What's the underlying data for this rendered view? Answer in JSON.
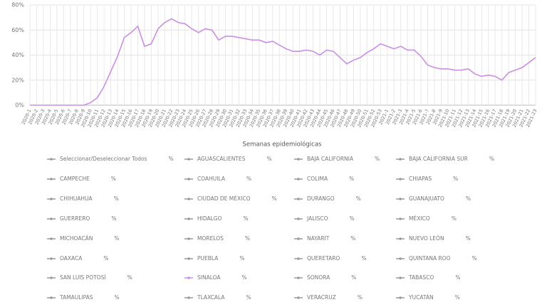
{
  "chart_data": {
    "type": "line",
    "xlabel": "Semanas epidemiológicas",
    "categories": [
      "2020-1",
      "2020-2",
      "2020-3",
      "2020-4",
      "2020-5",
      "2020-6",
      "2020-7",
      "2020-8",
      "2020-9",
      "2020-10",
      "2020-11",
      "2020-12",
      "2020-13",
      "2020-14",
      "2020-15",
      "2020-16",
      "2020-17",
      "2020-18",
      "2020-19",
      "2020-20",
      "2020-21",
      "2020-22",
      "2020-23",
      "2020-24",
      "2020-25",
      "2020-26",
      "2020-27",
      "2020-28",
      "2020-29",
      "2020-30",
      "2020-31",
      "2020-32",
      "2020-33",
      "2020-34",
      "2020-35",
      "2020-36",
      "2020-37",
      "2020-38",
      "2020-39",
      "2020-40",
      "2020-41",
      "2020-42",
      "2020-43",
      "2020-44",
      "2020-45",
      "2020-46",
      "2020-47",
      "2020-48",
      "2020-49",
      "2020-50",
      "2020-51",
      "2020-52",
      "2020-53",
      "2021-1",
      "2021-2",
      "2021-3",
      "2021-4",
      "2021-5",
      "2021-6",
      "2021-7",
      "2021-8",
      "2021-9",
      "2021-10",
      "2021-11",
      "2021-12",
      "2021-13",
      "2021-14",
      "2021-15",
      "2021-16",
      "2021-17",
      "2021-18",
      "2021-19",
      "2021-20",
      "2021-21",
      "2021-22",
      "2021-23"
    ],
    "series": [
      {
        "name": "SINALOA",
        "color": "#c98fe0",
        "values": [
          0,
          0,
          0,
          0,
          0,
          0,
          0,
          0,
          0,
          2,
          6,
          15,
          27,
          39,
          54,
          58,
          63,
          47,
          49,
          61,
          66,
          69,
          66,
          65,
          61,
          58,
          61,
          60,
          52,
          55,
          55,
          54,
          53,
          52,
          52,
          50,
          51,
          48,
          45,
          43,
          43,
          44,
          43,
          40,
          44,
          43,
          38,
          33,
          36,
          38,
          42,
          45,
          49,
          47,
          45,
          47,
          44,
          44,
          39,
          32,
          30,
          29,
          29,
          28,
          28,
          29,
          25,
          23,
          24,
          23,
          20,
          26,
          28,
          30,
          34,
          38
        ]
      }
    ],
    "ylim": [
      0,
      80
    ],
    "yticks": [
      {
        "value": 0,
        "label": "0%"
      },
      {
        "value": 20,
        "label": "20%"
      },
      {
        "value": 40,
        "label": "40%"
      },
      {
        "value": 60,
        "label": "60%"
      },
      {
        "value": 80,
        "label": "80%"
      }
    ],
    "grid": true,
    "inactive_color": "#9a9a9a",
    "legend": [
      {
        "label": "Seleccionar/Deseleccionar Todos",
        "value": "%"
      },
      {
        "label": "AGUASCALIENTES",
        "value": "%"
      },
      {
        "label": "BAJA CALIFORNIA",
        "value": "%"
      },
      {
        "label": "BAJA CALIFORNIA SUR",
        "value": "%"
      },
      {
        "label": "CAMPECHE",
        "value": "%"
      },
      {
        "label": "COAHUILA",
        "value": "%"
      },
      {
        "label": "COLIMA",
        "value": "%"
      },
      {
        "label": "CHIAPAS",
        "value": "%"
      },
      {
        "label": "CHIHUAHUA",
        "value": "%"
      },
      {
        "label": "CIUDAD DE MÉXICO",
        "value": "%"
      },
      {
        "label": "DURANGO",
        "value": "%"
      },
      {
        "label": "GUANAJUATO",
        "value": "%"
      },
      {
        "label": "GUERRERO",
        "value": "%"
      },
      {
        "label": "HIDALGO",
        "value": "%"
      },
      {
        "label": "JALISCO",
        "value": "%"
      },
      {
        "label": "MÉXICO",
        "value": "%"
      },
      {
        "label": "MICHOACÁN",
        "value": "%"
      },
      {
        "label": "MORELOS",
        "value": "%"
      },
      {
        "label": "NAYARIT",
        "value": "%"
      },
      {
        "label": "NUEVO LEÓN",
        "value": "%"
      },
      {
        "label": "OAXACA",
        "value": "%"
      },
      {
        "label": "PUEBLA",
        "value": "%"
      },
      {
        "label": "QUERETARO",
        "value": "%"
      },
      {
        "label": "QUINTANA ROO",
        "value": "%"
      },
      {
        "label": "SAN LUIS POTOSÍ",
        "value": "%"
      },
      {
        "label": "SINALOA",
        "value": "%"
      },
      {
        "label": "SONORA",
        "value": "%"
      },
      {
        "label": "TABASCO",
        "value": "%"
      },
      {
        "label": "TAMAULIPAS",
        "value": "%"
      },
      {
        "label": "TLAXCALA",
        "value": "%"
      },
      {
        "label": "VERACRUZ",
        "value": "%"
      },
      {
        "label": "YUCATÁN",
        "value": "%"
      }
    ]
  }
}
